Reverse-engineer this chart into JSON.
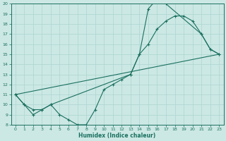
{
  "xlabel": "Humidex (Indice chaleur)",
  "bg_color": "#cce8e4",
  "grid_color": "#b0d8d4",
  "line_color": "#1a7060",
  "xlim": [
    -0.5,
    23.5
  ],
  "ylim": [
    8,
    20
  ],
  "xticks": [
    0,
    1,
    2,
    3,
    4,
    5,
    6,
    7,
    8,
    9,
    10,
    11,
    12,
    13,
    14,
    15,
    16,
    17,
    18,
    19,
    20,
    21,
    22,
    23
  ],
  "yticks": [
    8,
    9,
    10,
    11,
    12,
    13,
    14,
    15,
    16,
    17,
    18,
    19,
    20
  ],
  "line1_x": [
    0,
    1,
    2,
    3,
    4,
    5,
    6,
    7,
    8,
    9,
    10,
    11,
    12,
    13,
    14,
    15,
    16,
    17,
    21,
    22,
    23
  ],
  "line1_y": [
    11,
    10,
    9,
    9.5,
    10,
    9,
    8.5,
    8,
    8,
    9.5,
    11.5,
    12,
    12.5,
    13,
    15,
    19.5,
    20.5,
    20,
    17,
    15.5,
    15
  ],
  "line2_x": [
    0,
    1,
    2,
    3,
    4,
    13,
    14,
    15,
    16,
    17,
    18,
    19,
    20,
    21,
    22,
    23
  ],
  "line2_y": [
    11,
    10,
    9.5,
    9.5,
    10,
    13,
    15,
    16,
    17.5,
    18.3,
    18.8,
    18.8,
    18.3,
    17,
    15.5,
    15
  ],
  "line3_x": [
    0,
    23
  ],
  "line3_y": [
    11,
    15
  ]
}
